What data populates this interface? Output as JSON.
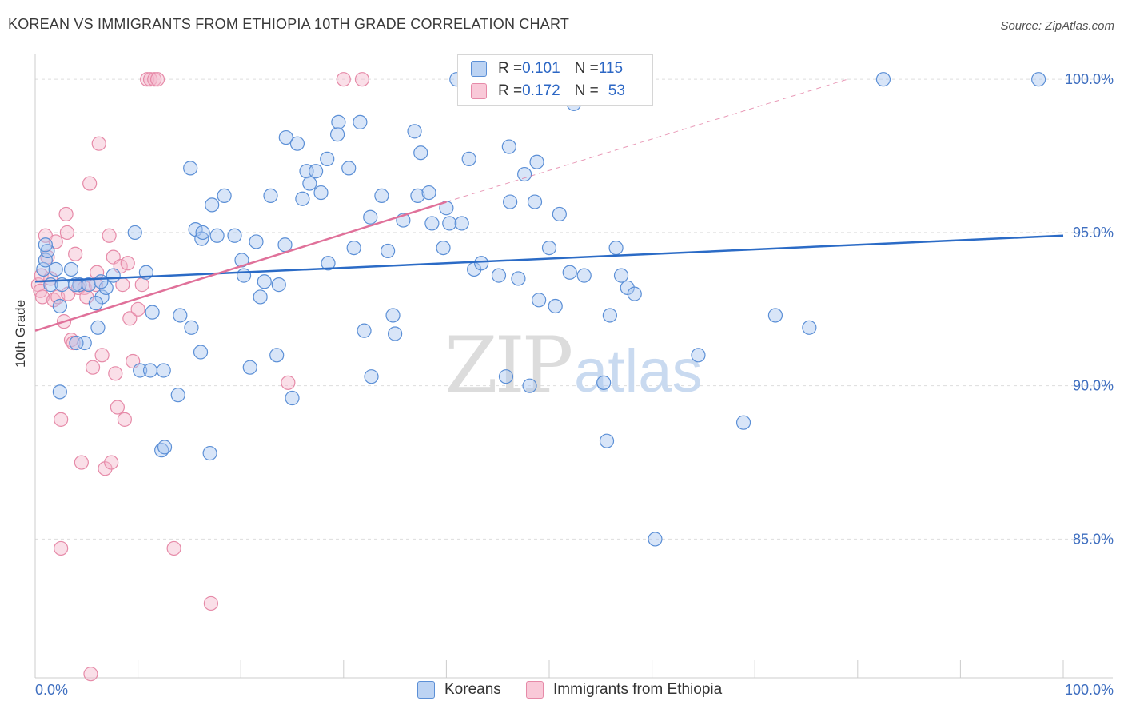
{
  "title": "KOREAN VS IMMIGRANTS FROM ETHIOPIA 10TH GRADE CORRELATION CHART",
  "source": "Source: ZipAtlas.com",
  "watermark": {
    "zip": "ZIP",
    "atlas": "atlas"
  },
  "legend": {
    "series1": {
      "r_label": "R = ",
      "r_value": "0.101",
      "n_label": "N = ",
      "n_value": "115"
    },
    "series2": {
      "r_label": "R = ",
      "r_value": "0.172",
      "n_label": "N = ",
      "n_value": "53"
    }
  },
  "colors": {
    "blue_fill": "#a8c6ef",
    "blue_stroke": "#5b8fd6",
    "blue_line": "#2b6bc6",
    "pink_fill": "#f5b8cc",
    "pink_stroke": "#e68aa8",
    "pink_line": "#e0719a",
    "grid": "#dddddd",
    "tick_text": "#3f6fc0"
  },
  "chart_data": {
    "type": "scatter",
    "title": "KOREAN VS IMMIGRANTS FROM ETHIOPIA 10TH GRADE CORRELATION CHART",
    "xlabel": "",
    "ylabel": "10th Grade",
    "xlim": [
      0,
      100
    ],
    "ylim": [
      80.5,
      100.5
    ],
    "x_tick_labels": [
      {
        "value": 0,
        "label": "0.0%"
      },
      {
        "value": 100,
        "label": "100.0%"
      }
    ],
    "y_tick_labels": [
      {
        "value": 100,
        "label": "100.0%"
      },
      {
        "value": 95,
        "label": "95.0%"
      },
      {
        "value": 90,
        "label": "90.0%"
      },
      {
        "value": 85,
        "label": "85.0%"
      }
    ],
    "x_minor_ticks": [
      0,
      10,
      20,
      30,
      40,
      50,
      60,
      70,
      80,
      90,
      100
    ],
    "series": [
      {
        "name": "Koreans",
        "trend": {
          "x": [
            0,
            100
          ],
          "y": [
            93.4,
            94.9
          ]
        },
        "points": [
          [
            0.8,
            93.8
          ],
          [
            1.0,
            94.1
          ],
          [
            1.2,
            94.4
          ],
          [
            1.5,
            93.3
          ],
          [
            2.0,
            93.8
          ],
          [
            2.6,
            93.3
          ],
          [
            3.5,
            93.8
          ],
          [
            4.3,
            93.3
          ],
          [
            1.0,
            94.6
          ],
          [
            2.4,
            92.6
          ],
          [
            3.9,
            93.3
          ],
          [
            5.2,
            93.3
          ],
          [
            4.8,
            91.4
          ],
          [
            6.5,
            92.9
          ],
          [
            6.9,
            93.2
          ],
          [
            5.9,
            92.7
          ],
          [
            7.6,
            93.6
          ],
          [
            9.7,
            95.0
          ],
          [
            10.8,
            93.7
          ],
          [
            11.4,
            92.4
          ],
          [
            12.5,
            90.5
          ],
          [
            14.1,
            92.3
          ],
          [
            15.2,
            91.9
          ],
          [
            16.1,
            91.1
          ],
          [
            6.1,
            91.9
          ],
          [
            6.4,
            93.4
          ],
          [
            4.0,
            91.4
          ],
          [
            2.4,
            89.8
          ],
          [
            10.2,
            90.5
          ],
          [
            11.2,
            90.5
          ],
          [
            13.9,
            89.7
          ],
          [
            12.3,
            87.9
          ],
          [
            12.6,
            88.0
          ],
          [
            17.0,
            87.8
          ],
          [
            15.1,
            97.1
          ],
          [
            15.6,
            95.1
          ],
          [
            16.2,
            94.8
          ],
          [
            16.3,
            95.0
          ],
          [
            17.7,
            94.9
          ],
          [
            17.2,
            95.9
          ],
          [
            18.4,
            96.2
          ],
          [
            19.4,
            94.9
          ],
          [
            20.1,
            94.1
          ],
          [
            20.3,
            93.6
          ],
          [
            20.9,
            90.6
          ],
          [
            21.5,
            94.7
          ],
          [
            21.9,
            92.9
          ],
          [
            22.3,
            93.4
          ],
          [
            22.9,
            96.2
          ],
          [
            23.5,
            91.0
          ],
          [
            23.7,
            93.3
          ],
          [
            24.3,
            94.6
          ],
          [
            24.4,
            98.1
          ],
          [
            25.5,
            97.9
          ],
          [
            25.0,
            89.6
          ],
          [
            26.0,
            96.1
          ],
          [
            26.4,
            97.0
          ],
          [
            26.7,
            96.6
          ],
          [
            27.3,
            97.0
          ],
          [
            27.8,
            96.3
          ],
          [
            28.4,
            97.4
          ],
          [
            28.5,
            94.0
          ],
          [
            29.4,
            98.2
          ],
          [
            29.5,
            98.6
          ],
          [
            30.5,
            97.1
          ],
          [
            31.0,
            94.5
          ],
          [
            31.6,
            98.6
          ],
          [
            32.0,
            91.8
          ],
          [
            32.6,
            95.5
          ],
          [
            32.7,
            90.3
          ],
          [
            33.7,
            96.2
          ],
          [
            34.3,
            94.4
          ],
          [
            34.8,
            92.3
          ],
          [
            35.0,
            91.7
          ],
          [
            35.8,
            95.4
          ],
          [
            36.9,
            98.3
          ],
          [
            37.2,
            96.2
          ],
          [
            37.5,
            97.6
          ],
          [
            38.3,
            96.3
          ],
          [
            38.6,
            95.3
          ],
          [
            39.7,
            94.5
          ],
          [
            40.0,
            95.8
          ],
          [
            40.3,
            95.3
          ],
          [
            41.5,
            95.3
          ],
          [
            42.2,
            97.4
          ],
          [
            42.7,
            93.8
          ],
          [
            43.4,
            94.0
          ],
          [
            45.1,
            93.6
          ],
          [
            45.8,
            90.3
          ],
          [
            46.1,
            97.8
          ],
          [
            46.2,
            96.0
          ],
          [
            47.0,
            93.5
          ],
          [
            47.6,
            96.9
          ],
          [
            48.1,
            90.0
          ],
          [
            48.6,
            96.0
          ],
          [
            48.8,
            97.3
          ],
          [
            49.0,
            92.8
          ],
          [
            50.0,
            94.5
          ],
          [
            50.6,
            92.6
          ],
          [
            51.0,
            95.6
          ],
          [
            52.0,
            93.7
          ],
          [
            52.4,
            99.2
          ],
          [
            53.4,
            93.6
          ],
          [
            55.3,
            90.1
          ],
          [
            55.6,
            88.2
          ],
          [
            55.9,
            92.3
          ],
          [
            56.5,
            94.5
          ],
          [
            57.0,
            93.6
          ],
          [
            57.6,
            93.2
          ],
          [
            58.3,
            93.0
          ],
          [
            60.3,
            85.0
          ],
          [
            64.5,
            91.0
          ],
          [
            68.9,
            88.8
          ],
          [
            72.0,
            92.3
          ],
          [
            75.3,
            91.9
          ],
          [
            82.5,
            100.0
          ],
          [
            97.6,
            100.0
          ],
          [
            41.0,
            100.0
          ]
        ]
      },
      {
        "name": "Immigrants from Ethiopia",
        "trend": {
          "x": [
            0,
            40
          ],
          "y": [
            91.8,
            96.0
          ]
        },
        "trend_ext": {
          "x": [
            40,
            79
          ],
          "y": [
            96.0,
            100.0
          ]
        },
        "points": [
          [
            0.3,
            93.3
          ],
          [
            0.5,
            93.1
          ],
          [
            0.6,
            93.6
          ],
          [
            0.7,
            92.9
          ],
          [
            1.0,
            94.9
          ],
          [
            1.2,
            94.2
          ],
          [
            1.5,
            93.5
          ],
          [
            1.8,
            92.8
          ],
          [
            2.0,
            94.7
          ],
          [
            2.2,
            92.9
          ],
          [
            2.5,
            88.9
          ],
          [
            2.8,
            92.1
          ],
          [
            3.0,
            95.6
          ],
          [
            3.2,
            93.0
          ],
          [
            3.5,
            91.5
          ],
          [
            3.7,
            91.4
          ],
          [
            3.9,
            94.3
          ],
          [
            4.2,
            93.2
          ],
          [
            4.5,
            87.5
          ],
          [
            4.8,
            93.2
          ],
          [
            5.0,
            92.9
          ],
          [
            5.3,
            96.6
          ],
          [
            5.6,
            90.6
          ],
          [
            5.9,
            93.3
          ],
          [
            6.2,
            97.9
          ],
          [
            6.5,
            91.0
          ],
          [
            6.8,
            87.3
          ],
          [
            7.2,
            94.9
          ],
          [
            7.4,
            87.5
          ],
          [
            7.6,
            94.2
          ],
          [
            7.8,
            90.4
          ],
          [
            8.0,
            89.3
          ],
          [
            8.3,
            93.9
          ],
          [
            8.5,
            93.3
          ],
          [
            8.7,
            88.9
          ],
          [
            9.0,
            94.0
          ],
          [
            9.2,
            92.2
          ],
          [
            9.5,
            90.8
          ],
          [
            10.0,
            92.5
          ],
          [
            10.4,
            93.3
          ],
          [
            10.9,
            100.0
          ],
          [
            11.2,
            100.0
          ],
          [
            11.6,
            100.0
          ],
          [
            11.9,
            100.0
          ],
          [
            24.6,
            90.1
          ],
          [
            30.0,
            100.0
          ],
          [
            31.8,
            100.0
          ],
          [
            13.5,
            84.7
          ],
          [
            2.5,
            84.7
          ],
          [
            17.1,
            82.9
          ],
          [
            5.4,
            80.6
          ],
          [
            6.0,
            93.7
          ],
          [
            3.1,
            95.0
          ]
        ]
      }
    ]
  },
  "bottom_legend": {
    "series1": "Koreans",
    "series2": "Immigrants from Ethiopia"
  }
}
